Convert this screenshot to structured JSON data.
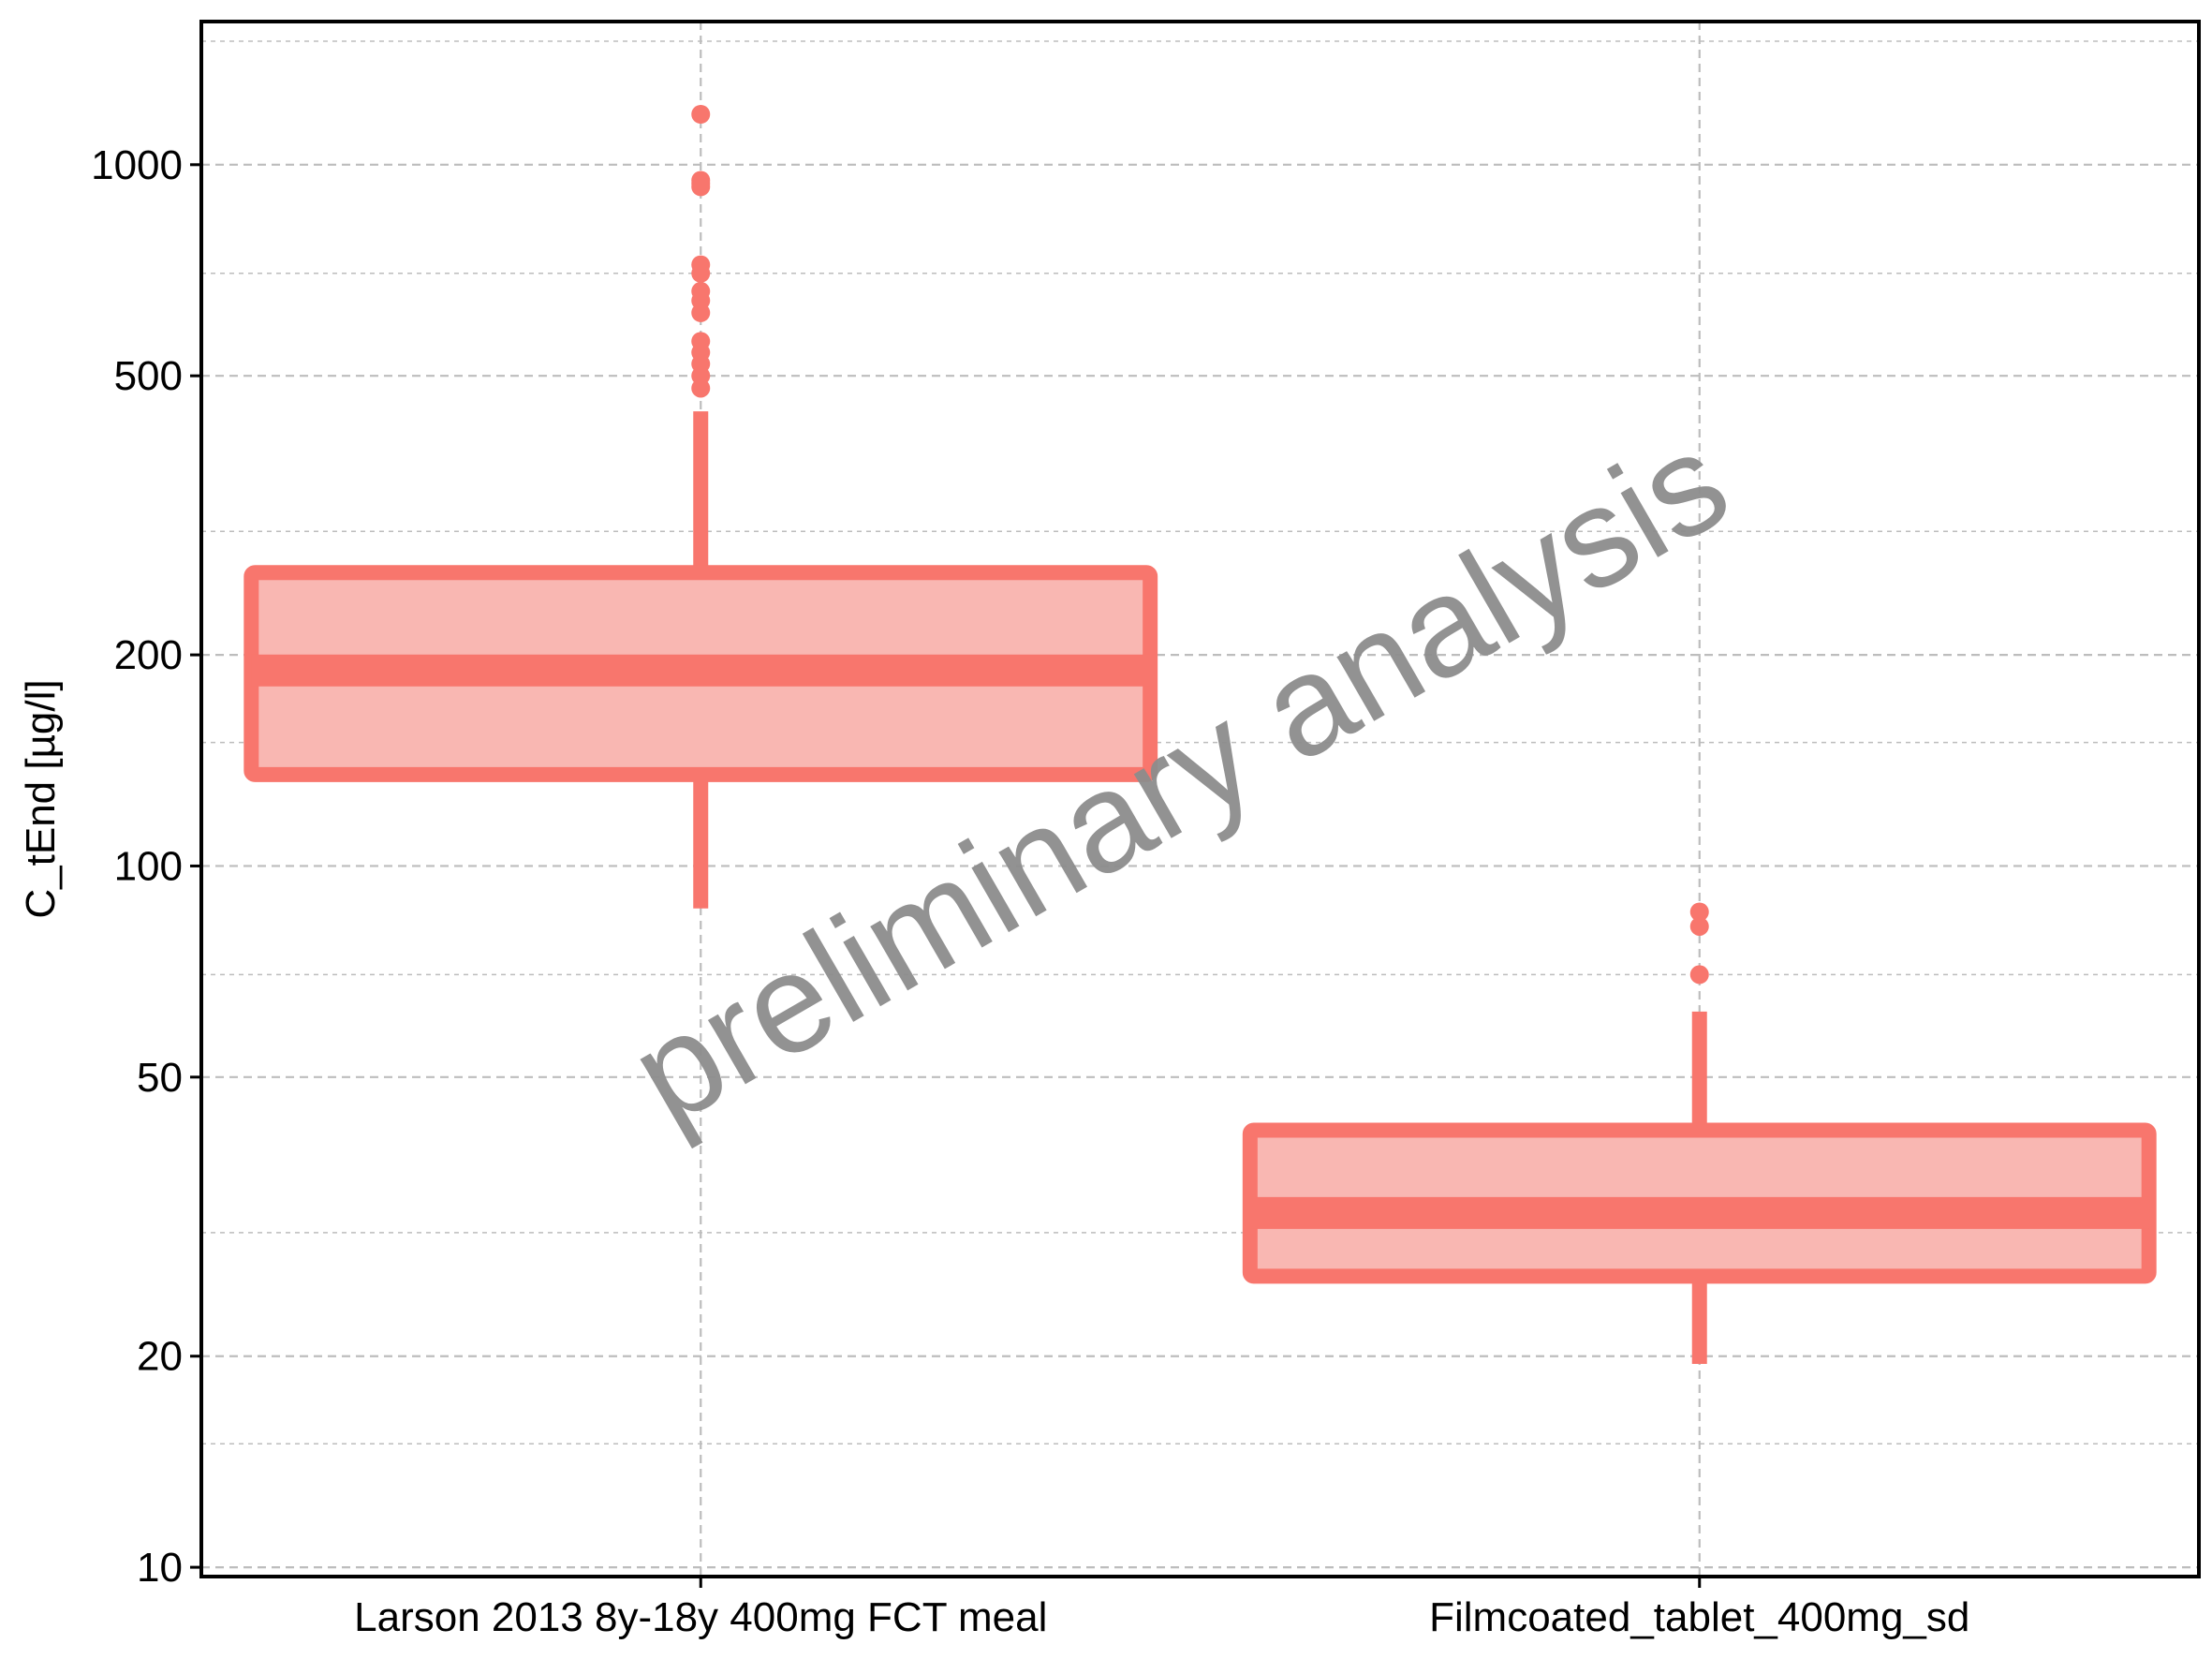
{
  "chart_data": {
    "type": "boxplot",
    "ylabel": "C_tEnd [µg/l]",
    "y_scale": "log",
    "ylim": [
      9.7,
      1600
    ],
    "y_ticks": [
      {
        "value": 10,
        "label": "10"
      },
      {
        "value": 20,
        "label": "20"
      },
      {
        "value": 50,
        "label": "50"
      },
      {
        "value": 100,
        "label": "100"
      },
      {
        "value": 200,
        "label": "200"
      },
      {
        "value": 500,
        "label": "500"
      },
      {
        "value": 1000,
        "label": "1000"
      }
    ],
    "y_minor_ticks": [
      15,
      30,
      70,
      150,
      300,
      700,
      1500
    ],
    "categories": [
      "Larson 2013 8y-18y 400mg FCT meal",
      "Filmcoated_tablet_400mg_sd"
    ],
    "boxes": [
      {
        "category": "Larson 2013 8y-18y 400mg FCT meal",
        "whisker_low": 87,
        "q1": 135,
        "median": 190,
        "q3": 262,
        "whisker_high": 445,
        "outliers": [
          1180,
          950,
          940,
          930,
          720,
          700,
          660,
          640,
          615,
          560,
          540,
          520,
          500,
          480
        ]
      },
      {
        "category": "Filmcoated_tablet_400mg_sd",
        "whisker_low": 19.5,
        "q1": 26,
        "median": 32,
        "q3": 42,
        "whisker_high": 62,
        "outliers": [
          86,
          82,
          70
        ]
      }
    ],
    "grid": true,
    "colors": {
      "box_line": "#f8766d",
      "box_fill": "#f9b7b2",
      "grid": "#bdbdbd",
      "watermark": "#8c8c8c"
    },
    "annotation": "preliminary analysis"
  }
}
